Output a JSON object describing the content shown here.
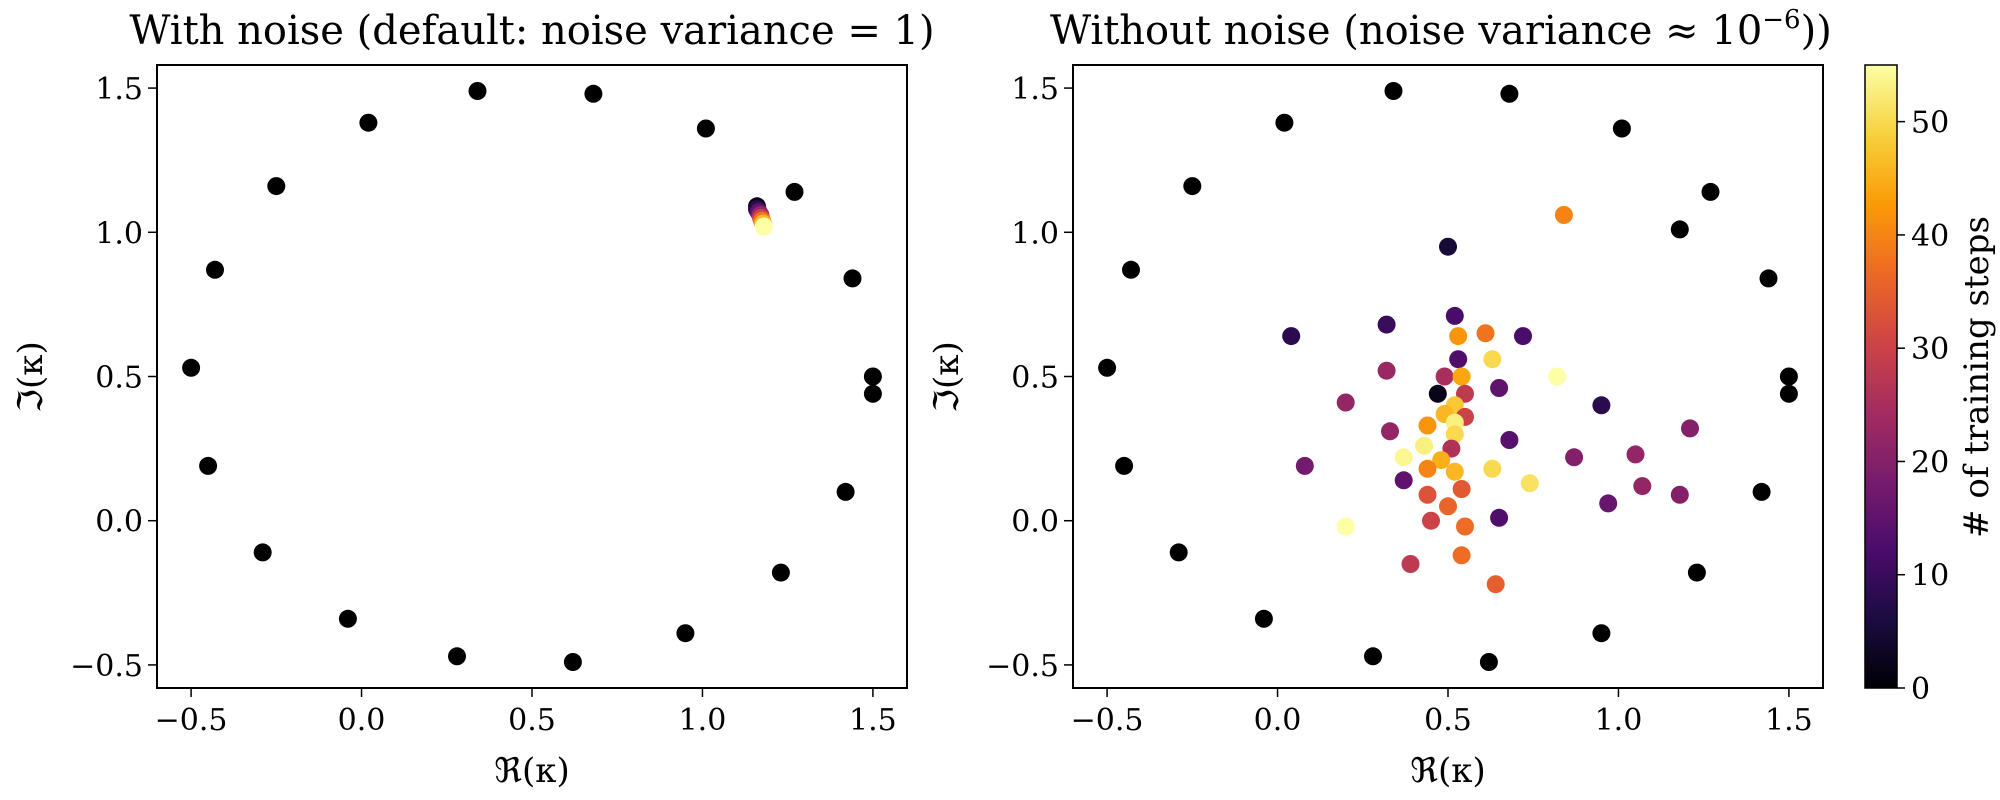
{
  "chart_data": [
    {
      "type": "scatter",
      "title": "With noise (default: noise variance = 1)",
      "xlabel": "ℜ(κ)",
      "ylabel": "ℑ(κ)",
      "xlim": [
        -0.6,
        1.6
      ],
      "ylim": [
        -0.58,
        1.58
      ],
      "xticks": [
        -0.5,
        0.0,
        0.5,
        1.0,
        1.5
      ],
      "xtick_labels": [
        "−0.5",
        "0.0",
        "0.5",
        "1.0",
        "1.5"
      ],
      "yticks": [
        -0.5,
        0.0,
        0.5,
        1.0,
        1.5
      ],
      "ytick_labels": [
        "−0.5",
        "0.0",
        "0.5",
        "1.0",
        "1.5"
      ],
      "grid": false,
      "series": [
        {
          "points": [
            [
              0.34,
              1.49
            ],
            [
              0.68,
              1.48
            ],
            [
              0.02,
              1.38
            ],
            [
              1.01,
              1.36
            ],
            [
              -0.25,
              1.16
            ],
            [
              1.27,
              1.14
            ],
            [
              -0.43,
              0.87
            ],
            [
              1.44,
              0.84
            ],
            [
              -0.5,
              0.53
            ],
            [
              1.5,
              0.5
            ],
            [
              1.5,
              0.44
            ],
            [
              -0.45,
              0.19
            ],
            [
              1.42,
              0.1
            ],
            [
              -0.29,
              -0.11
            ],
            [
              1.23,
              -0.18
            ],
            [
              -0.04,
              -0.34
            ],
            [
              0.95,
              -0.39
            ],
            [
              0.28,
              -0.47
            ],
            [
              0.62,
              -0.49
            ]
          ],
          "color": "#000000"
        },
        {
          "points": [
            [
              1.16,
              1.09,
              2
            ],
            [
              1.16,
              1.08,
              8
            ],
            [
              1.165,
              1.07,
              15
            ],
            [
              1.17,
              1.06,
              22
            ],
            [
              1.172,
              1.05,
              30
            ],
            [
              1.175,
              1.04,
              38
            ],
            [
              1.178,
              1.03,
              46
            ],
            [
              1.18,
              1.02,
              55
            ]
          ],
          "colormap": "inferno"
        }
      ]
    },
    {
      "type": "scatter",
      "title": "Without noise (noise variance ≈ 10",
      "title_superscript": "−6",
      "title_close": "))",
      "xlabel": "ℜ(κ)",
      "ylabel": "ℑ(κ)",
      "xlim": [
        -0.6,
        1.6
      ],
      "ylim": [
        -0.58,
        1.58
      ],
      "xticks": [
        -0.5,
        0.0,
        0.5,
        1.0,
        1.5
      ],
      "xtick_labels": [
        "−0.5",
        "0.0",
        "0.5",
        "1.0",
        "1.5"
      ],
      "yticks": [
        -0.5,
        0.0,
        0.5,
        1.0,
        1.5
      ],
      "ytick_labels": [
        "−0.5",
        "0.0",
        "0.5",
        "1.0",
        "1.5"
      ],
      "grid": false,
      "series": [
        {
          "points": [
            [
              0.34,
              1.49
            ],
            [
              0.68,
              1.48
            ],
            [
              0.02,
              1.38
            ],
            [
              1.01,
              1.36
            ],
            [
              -0.25,
              1.16
            ],
            [
              1.27,
              1.14
            ],
            [
              1.18,
              1.01
            ],
            [
              -0.43,
              0.87
            ],
            [
              1.44,
              0.84
            ],
            [
              -0.5,
              0.53
            ],
            [
              1.5,
              0.5
            ],
            [
              1.5,
              0.44
            ],
            [
              -0.45,
              0.19
            ],
            [
              1.42,
              0.1
            ],
            [
              -0.29,
              -0.11
            ],
            [
              1.23,
              -0.18
            ],
            [
              -0.04,
              -0.34
            ],
            [
              0.95,
              -0.39
            ],
            [
              0.28,
              -0.47
            ],
            [
              0.62,
              -0.49
            ]
          ],
          "color": "#000000"
        },
        {
          "points": [
            [
              0.84,
              1.06,
              40
            ],
            [
              0.5,
              0.95,
              5
            ],
            [
              0.32,
              0.68,
              10
            ],
            [
              0.52,
              0.71,
              12
            ],
            [
              0.04,
              0.64,
              8
            ],
            [
              0.72,
              0.64,
              12
            ],
            [
              0.61,
              0.65,
              38
            ],
            [
              0.53,
              0.64,
              42
            ],
            [
              0.63,
              0.56,
              50
            ],
            [
              0.53,
              0.56,
              13
            ],
            [
              0.32,
              0.52,
              23
            ],
            [
              0.49,
              0.5,
              25
            ],
            [
              0.54,
              0.5,
              44
            ],
            [
              0.82,
              0.5,
              55
            ],
            [
              0.47,
              0.44,
              2
            ],
            [
              0.55,
              0.44,
              28
            ],
            [
              0.65,
              0.46,
              15
            ],
            [
              0.95,
              0.4,
              8
            ],
            [
              0.52,
              0.4,
              48
            ],
            [
              0.49,
              0.37,
              46
            ],
            [
              0.2,
              0.41,
              22
            ],
            [
              0.55,
              0.36,
              30
            ],
            [
              0.52,
              0.34,
              53
            ],
            [
              0.44,
              0.33,
              42
            ],
            [
              0.52,
              0.3,
              50
            ],
            [
              0.33,
              0.31,
              22
            ],
            [
              0.68,
              0.28,
              14
            ],
            [
              0.43,
              0.26,
              53
            ],
            [
              0.51,
              0.25,
              26
            ],
            [
              0.37,
              0.22,
              54
            ],
            [
              1.21,
              0.32,
              20
            ],
            [
              0.08,
              0.19,
              18
            ],
            [
              0.87,
              0.22,
              20
            ],
            [
              1.05,
              0.23,
              22
            ],
            [
              0.48,
              0.21,
              45
            ],
            [
              0.44,
              0.18,
              40
            ],
            [
              0.52,
              0.17,
              46
            ],
            [
              0.63,
              0.18,
              50
            ],
            [
              0.37,
              0.14,
              15
            ],
            [
              0.74,
              0.13,
              51
            ],
            [
              1.07,
              0.12,
              22
            ],
            [
              1.18,
              0.09,
              20
            ],
            [
              0.44,
              0.09,
              33
            ],
            [
              0.54,
              0.11,
              34
            ],
            [
              0.97,
              0.06,
              16
            ],
            [
              0.2,
              -0.02,
              55
            ],
            [
              0.45,
              0.0,
              30
            ],
            [
              0.5,
              0.05,
              36
            ],
            [
              0.55,
              -0.02,
              37
            ],
            [
              0.65,
              0.01,
              13
            ],
            [
              0.39,
              -0.15,
              28
            ],
            [
              0.54,
              -0.12,
              37
            ],
            [
              0.64,
              -0.22,
              35
            ]
          ],
          "colormap": "inferno"
        }
      ]
    }
  ],
  "colorbar": {
    "label": "# of training steps",
    "min": 0,
    "max": 55,
    "ticks": [
      0,
      10,
      20,
      30,
      40,
      50
    ],
    "tick_labels": [
      "0",
      "10",
      "20",
      "30",
      "40",
      "50"
    ],
    "colormap": "inferno",
    "colormap_stops": [
      "#000004",
      "#1b0c41",
      "#4a0c6b",
      "#781c6d",
      "#a52c60",
      "#cf4446",
      "#ed6925",
      "#fb9b06",
      "#f7d13d",
      "#fcffa4"
    ]
  }
}
